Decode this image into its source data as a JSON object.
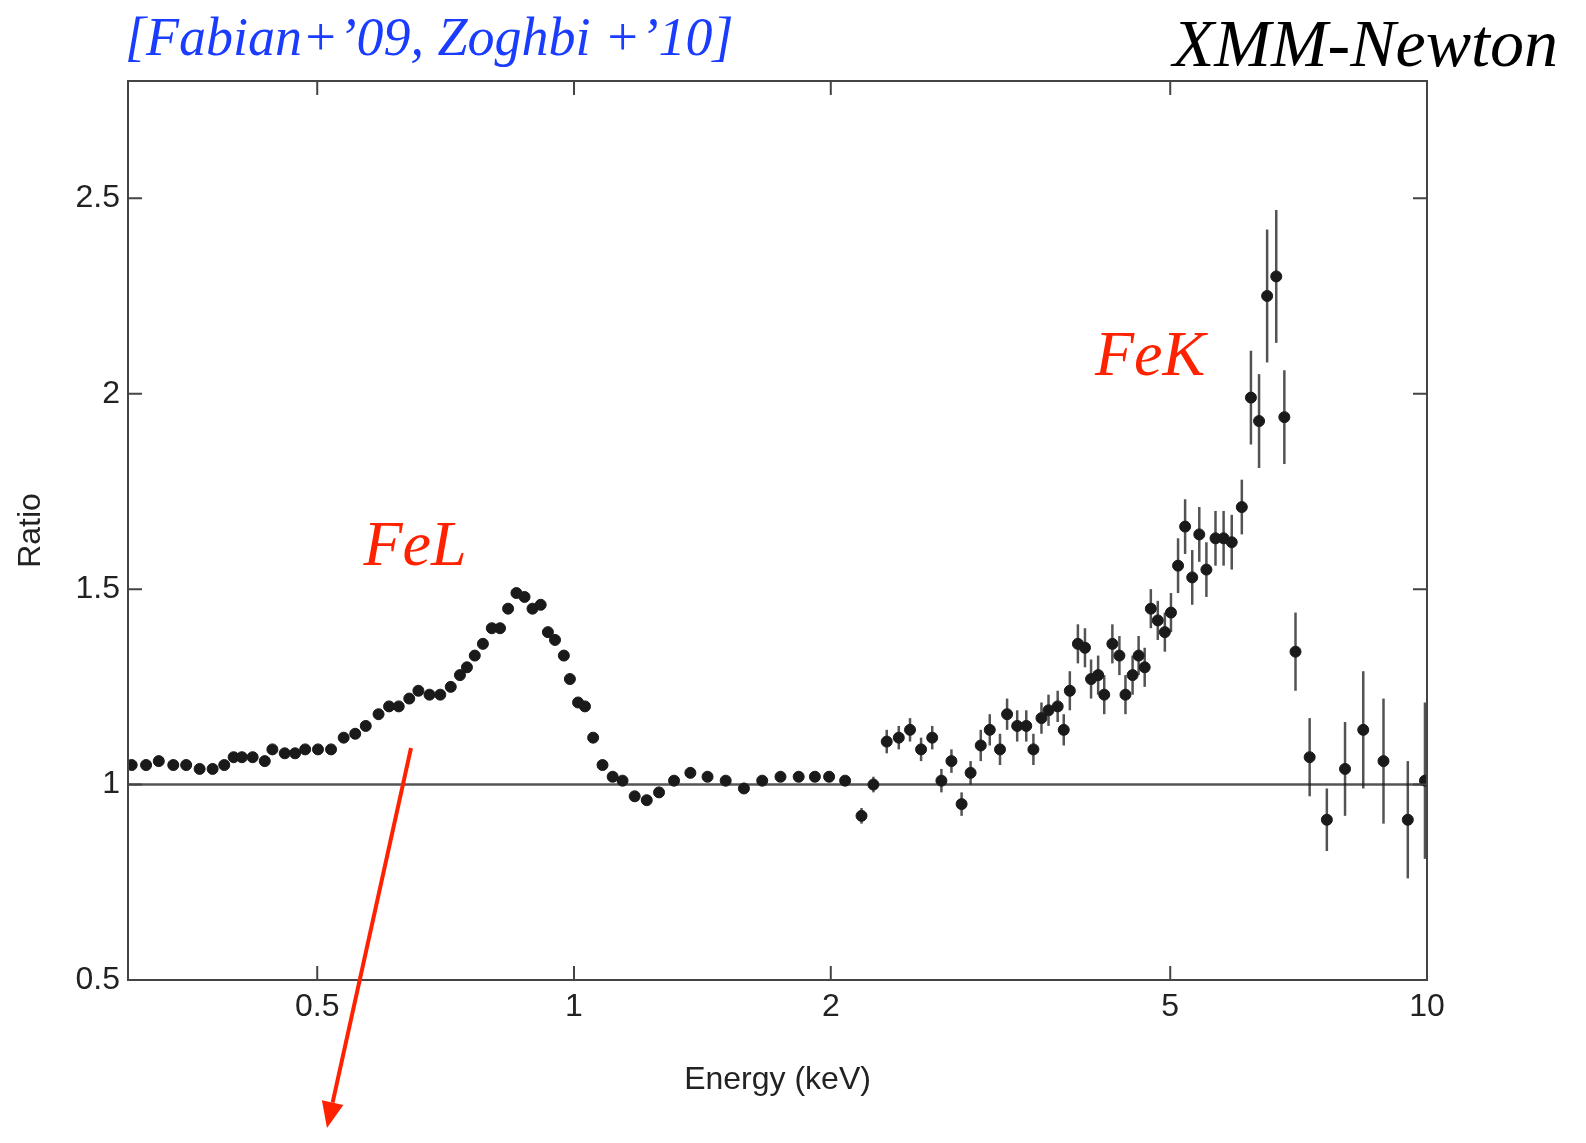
{
  "chart_data": {
    "type": "scatter",
    "title": "XMM-Newton",
    "xlabel": "Energy (keV)",
    "ylabel": "Ratio",
    "annotations": [
      "[Fabian+’09, Zoghbi +’10]",
      "FeL",
      "FeK"
    ],
    "log": "x",
    "xlim": [
      0.3,
      10
    ],
    "xticks": [
      0.5,
      1,
      2,
      5,
      10
    ],
    "ylim": [
      0.5,
      2.8
    ],
    "yticks": [
      0.5,
      1,
      1.5,
      2,
      2.5
    ],
    "grid": false,
    "legend": false,
    "marker": "circle",
    "ref_lines": [
      {
        "axis": "y",
        "value": 1,
        "color": "#555555"
      }
    ],
    "series": [
      {
        "color": "#1a1a1a",
        "x": [
          0.303,
          0.315,
          0.326,
          0.339,
          0.351,
          0.364,
          0.377,
          0.389,
          0.399,
          0.408,
          0.42,
          0.434,
          0.443,
          0.458,
          0.471,
          0.484,
          0.501,
          0.519,
          0.537,
          0.554,
          0.57,
          0.59,
          0.607,
          0.623,
          0.641,
          0.657,
          0.677,
          0.697,
          0.717,
          0.735,
          0.749,
          0.765,
          0.782,
          0.801,
          0.819,
          0.837,
          0.856,
          0.875,
          0.894,
          0.914,
          0.932,
          0.95,
          0.973,
          0.989,
          1.011,
          1.03,
          1.053,
          1.08,
          1.11,
          1.14,
          1.178,
          1.217,
          1.258,
          1.31,
          1.369,
          1.434,
          1.506,
          1.582,
          1.662,
          1.746,
          1.834,
          1.916,
          1.991,
          2.079,
          2.173,
          2.244,
          2.326,
          2.403,
          2.477,
          2.552,
          2.63,
          2.696,
          2.77,
          2.847,
          2.917,
          2.998,
          3.072,
          3.158,
          3.219,
          3.308,
          3.39,
          3.456,
          3.532,
          3.6,
          3.69,
          3.751,
          3.813,
          3.897,
          3.972,
          4.038,
          4.116,
          4.184,
          4.277,
          4.359,
          4.431,
          4.517,
          4.591,
          4.667,
          4.745,
          4.835,
          4.928,
          5.01,
          5.107,
          5.205,
          5.306,
          5.408,
          5.513,
          5.65,
          5.775,
          5.903,
          6.066,
          6.217,
          6.355,
          6.495,
          6.657,
          6.804,
          7.012,
          7.285,
          7.631,
          8.015,
          8.419,
          8.892,
          9.495,
          9.945
        ],
        "values": [
          1.05,
          1.05,
          1.06,
          1.05,
          1.05,
          1.04,
          1.04,
          1.05,
          1.07,
          1.07,
          1.07,
          1.06,
          1.09,
          1.08,
          1.08,
          1.09,
          1.09,
          1.09,
          1.12,
          1.13,
          1.15,
          1.18,
          1.2,
          1.2,
          1.22,
          1.24,
          1.23,
          1.23,
          1.25,
          1.28,
          1.3,
          1.33,
          1.36,
          1.4,
          1.4,
          1.45,
          1.49,
          1.48,
          1.45,
          1.46,
          1.39,
          1.37,
          1.33,
          1.27,
          1.21,
          1.2,
          1.12,
          1.05,
          1.02,
          1.01,
          0.97,
          0.96,
          0.98,
          1.01,
          1.03,
          1.02,
          1.01,
          0.99,
          1.01,
          1.02,
          1.02,
          1.02,
          1.02,
          1.01,
          0.92,
          1.0,
          1.11,
          1.12,
          1.14,
          1.09,
          1.12,
          1.01,
          1.06,
          0.95,
          1.03,
          1.1,
          1.14,
          1.09,
          1.18,
          1.15,
          1.15,
          1.09,
          1.17,
          1.19,
          1.2,
          1.14,
          1.24,
          1.36,
          1.35,
          1.27,
          1.28,
          1.23,
          1.36,
          1.33,
          1.23,
          1.28,
          1.33,
          1.3,
          1.45,
          1.42,
          1.39,
          1.44,
          1.56,
          1.66,
          1.53,
          1.64,
          1.55,
          1.63,
          1.63,
          1.62,
          1.71,
          1.99,
          1.93,
          2.25,
          2.3,
          1.94,
          1.34,
          1.07,
          0.91,
          1.04,
          1.14,
          1.06,
          0.91,
          1.01
        ],
        "errors": [
          null,
          null,
          null,
          null,
          null,
          null,
          null,
          null,
          null,
          null,
          null,
          null,
          null,
          null,
          null,
          null,
          null,
          null,
          null,
          null,
          null,
          null,
          null,
          null,
          null,
          null,
          null,
          null,
          null,
          null,
          null,
          null,
          null,
          null,
          null,
          null,
          null,
          null,
          null,
          null,
          null,
          null,
          null,
          null,
          null,
          null,
          null,
          null,
          null,
          null,
          null,
          null,
          null,
          null,
          null,
          null,
          null,
          null,
          null,
          null,
          null,
          null,
          null,
          null,
          0.02,
          0.02,
          0.03,
          0.03,
          0.03,
          0.03,
          0.03,
          0.03,
          0.03,
          0.03,
          0.03,
          0.04,
          0.04,
          0.04,
          0.04,
          0.04,
          0.04,
          0.04,
          0.04,
          0.04,
          0.04,
          0.04,
          0.05,
          0.05,
          0.05,
          0.05,
          0.05,
          0.05,
          0.05,
          0.05,
          0.05,
          0.05,
          0.05,
          0.05,
          0.05,
          0.05,
          0.05,
          0.05,
          0.07,
          0.07,
          0.07,
          0.07,
          0.07,
          0.07,
          0.07,
          0.07,
          0.07,
          0.12,
          0.12,
          0.17,
          0.17,
          0.12,
          0.1,
          0.1,
          0.08,
          0.12,
          0.15,
          0.16,
          0.15,
          0.2
        ]
      }
    ]
  }
}
